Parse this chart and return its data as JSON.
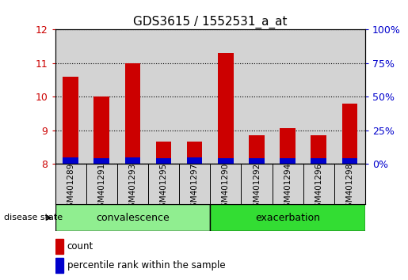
{
  "title": "GDS3615 / 1552531_a_at",
  "samples": [
    "GSM401289",
    "GSM401291",
    "GSM401293",
    "GSM401295",
    "GSM401297",
    "GSM401290",
    "GSM401292",
    "GSM401294",
    "GSM401296",
    "GSM401298"
  ],
  "count_values": [
    10.6,
    10.0,
    11.0,
    8.65,
    8.65,
    11.3,
    8.85,
    9.05,
    8.85,
    9.8
  ],
  "percentile_values": [
    0.18,
    0.17,
    0.18,
    0.16,
    0.18,
    0.17,
    0.16,
    0.17,
    0.16,
    0.17
  ],
  "bar_bottom": 8.0,
  "ylim_left": [
    8.0,
    12.0
  ],
  "ylim_right": [
    0,
    100
  ],
  "yticks_left": [
    8,
    9,
    10,
    11,
    12
  ],
  "yticks_right": [
    0,
    25,
    50,
    75,
    100
  ],
  "groups": [
    {
      "label": "convalescence",
      "count": 5,
      "color": "#90EE90"
    },
    {
      "label": "exacerbation",
      "count": 5,
      "color": "#33DD33"
    }
  ],
  "bar_width": 0.5,
  "red_color": "#CC0000",
  "blue_color": "#0000CC",
  "bg_color": "#D3D3D3",
  "title_fontsize": 11,
  "axis_label_color_left": "#CC0000",
  "axis_label_color_right": "#0000CC",
  "white_bg": "#FFFFFF"
}
